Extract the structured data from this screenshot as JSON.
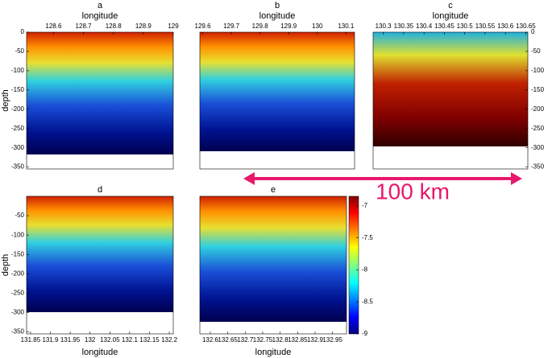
{
  "chart_data": [
    {
      "type": "heatmap",
      "title": "a",
      "x_label": "longitude",
      "y_label": "depth",
      "x_axis": "top",
      "y_axis": "left",
      "xlim": [
        128.51,
        129
      ],
      "xticks": [
        128.6,
        128.7,
        128.8,
        128.9,
        129
      ],
      "ylim": [
        -355,
        0
      ],
      "yticks": [
        0,
        -50,
        -100,
        -150,
        -200,
        -250,
        -300,
        -350
      ]
    },
    {
      "type": "heatmap",
      "title": "b",
      "x_label": "longitude",
      "x_axis": "top",
      "xlim": [
        129.59,
        130.13
      ],
      "xticks": [
        129.6,
        129.7,
        129.8,
        129.9,
        130,
        130.1
      ]
    },
    {
      "type": "heatmap",
      "title": "c",
      "x_label": "longitude",
      "x_axis": "top",
      "y_axis": "right",
      "xlim": [
        130.275,
        130.655
      ],
      "xticks": [
        130.3,
        130.35,
        130.4,
        130.45,
        130.5,
        130.55,
        130.6,
        130.65
      ],
      "ylim": [
        -355,
        0
      ],
      "yticks": [
        0,
        -50,
        -100,
        -150,
        -200,
        -250,
        -300,
        -350
      ]
    },
    {
      "type": "heatmap",
      "title": "d",
      "x_label": "longitude",
      "y_label": "depth",
      "x_axis": "bottom",
      "y_axis": "left",
      "xlim": [
        131.84,
        132.21
      ],
      "xticks": [
        131.85,
        131.9,
        131.95,
        132,
        132.05,
        132.1,
        132.15,
        132.2
      ],
      "ylim": [
        -355,
        0
      ],
      "yticks": [
        -50,
        -100,
        -150,
        -200,
        -250,
        -300,
        -350
      ]
    },
    {
      "type": "heatmap",
      "title": "e",
      "x_label": "longitude",
      "x_axis": "bottom",
      "xlim": [
        132.57,
        132.99
      ],
      "xticks": [
        132.6,
        132.65,
        132.7,
        132.75,
        132.8,
        132.85,
        132.9,
        132.95
      ],
      "colorbar_lim": [
        -9,
        -6.85
      ],
      "colorbar_ticks": [
        -9,
        -8.5,
        -8,
        -7.5,
        -7
      ]
    }
  ],
  "annotation": "100 km"
}
